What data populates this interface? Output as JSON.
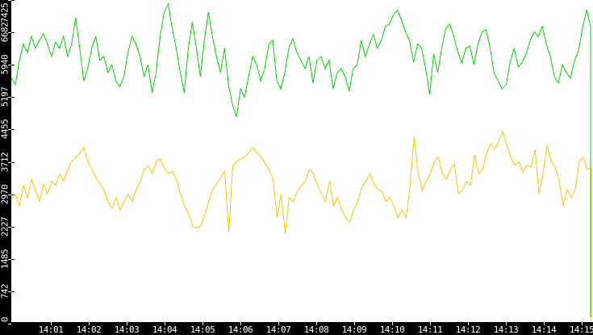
{
  "chart_data": {
    "type": "line",
    "title": "",
    "grid": false,
    "legend": false,
    "ylim": [
      0,
      7425
    ],
    "colors": {
      "plot_bg": "#ffffff",
      "axis_bg": "#000000",
      "tick_text": "#ffffff",
      "green_series": "#00dd00",
      "yellow_series": "#fdc800"
    },
    "y_ticks": [
      {
        "label": "0",
        "value": 0
      },
      {
        "label": "742",
        "value": 742
      },
      {
        "label": "1485",
        "value": 1485
      },
      {
        "label": "2227",
        "value": 2227
      },
      {
        "label": "2970",
        "value": 2970
      },
      {
        "label": "3712",
        "value": 3712
      },
      {
        "label": "4455",
        "value": 4455
      },
      {
        "label": "5197",
        "value": 5197
      },
      {
        "label": "5940",
        "value": 5940
      },
      {
        "label": "6682",
        "value": 6682
      },
      {
        "label": "7425",
        "value": 7425
      }
    ],
    "x_ticks": [
      "14:01",
      "14:02",
      "14:03",
      "14:04",
      "14:05",
      "14:06",
      "14:07",
      "14:08",
      "14:09",
      "14:10",
      "14:11",
      "14:12",
      "14:13",
      "14:14",
      "14:15"
    ],
    "series": [
      {
        "name": "green",
        "color": "#00dd00",
        "values": [
          5630,
          5480,
          6040,
          6410,
          6220,
          6590,
          6320,
          6500,
          6650,
          6410,
          6130,
          6460,
          6320,
          6590,
          6130,
          6410,
          7020,
          6320,
          5570,
          5850,
          6320,
          6590,
          6040,
          6130,
          5760,
          5940,
          5570,
          5440,
          5670,
          6220,
          6590,
          6410,
          6130,
          5670,
          5940,
          5300,
          5760,
          6590,
          7150,
          7330,
          6780,
          6320,
          5760,
          5300,
          6320,
          6910,
          6320,
          5670,
          6500,
          7150,
          6590,
          6130,
          5760,
          6320,
          5480,
          5020,
          4740,
          5390,
          5200,
          5670,
          6130,
          5940,
          5570,
          5850,
          6410,
          6500,
          5570,
          5390,
          5760,
          6320,
          6540,
          6220,
          6040,
          5850,
          6130,
          5520,
          6040,
          6130,
          5850,
          6040,
          5390,
          5760,
          5850,
          5670,
          5330,
          5850,
          5940,
          6500,
          6130,
          6410,
          6630,
          6320,
          6500,
          6820,
          6870,
          7090,
          7200,
          6960,
          6690,
          6500,
          6000,
          6410,
          6320,
          5850,
          5260,
          6190,
          5760,
          6320,
          6780,
          6870,
          6590,
          6220,
          5980,
          6320,
          6370,
          5940,
          6410,
          6690,
          6740,
          6350,
          5760,
          5570,
          5390,
          5480,
          6000,
          6320,
          5890,
          6000,
          6190,
          6500,
          6690,
          6590,
          6820,
          6410,
          6130,
          5670,
          5520,
          5940,
          5760,
          5630,
          6040,
          6260,
          6780,
          7200,
          6830
        ],
        "end_value": 150
      },
      {
        "name": "yellow",
        "color": "#fdc800",
        "values": [
          2850,
          2980,
          2700,
          3170,
          2890,
          3310,
          3070,
          2800,
          3200,
          2980,
          3260,
          3170,
          3440,
          3260,
          3540,
          3720,
          3820,
          3910,
          4040,
          3720,
          3540,
          3350,
          3220,
          3070,
          2800,
          2650,
          2890,
          2610,
          2800,
          2980,
          2800,
          3070,
          3260,
          3540,
          3630,
          3440,
          3720,
          3780,
          3570,
          3440,
          3500,
          3310,
          2980,
          2700,
          2520,
          2240,
          2190,
          2240,
          2480,
          2800,
          3070,
          3220,
          3350,
          3500,
          2090,
          3630,
          3720,
          3780,
          3820,
          3940,
          4040,
          3910,
          3820,
          3670,
          3540,
          3310,
          2430,
          2980,
          2060,
          2890,
          2800,
          3040,
          3170,
          3260,
          3540,
          3440,
          3170,
          2980,
          2800,
          3260,
          2700,
          2890,
          2610,
          2430,
          2330,
          2610,
          2800,
          3130,
          3260,
          3440,
          3200,
          3070,
          3040,
          2800,
          2890,
          2700,
          2430,
          2610,
          2430,
          3170,
          4280,
          3440,
          3070,
          3260,
          3440,
          3720,
          3820,
          3440,
          3310,
          3540,
          3670,
          2980,
          3070,
          3260,
          3170,
          3870,
          3440,
          3540,
          3910,
          4130,
          4000,
          4190,
          4410,
          4090,
          3820,
          3630,
          3720,
          3480,
          3630,
          3590,
          4000,
          2980,
          3440,
          4090,
          3720,
          3590,
          3260,
          2700,
          3070,
          2890,
          3070,
          3720,
          3820,
          3540,
          3590
        ],
        "end_value": 75
      }
    ]
  }
}
